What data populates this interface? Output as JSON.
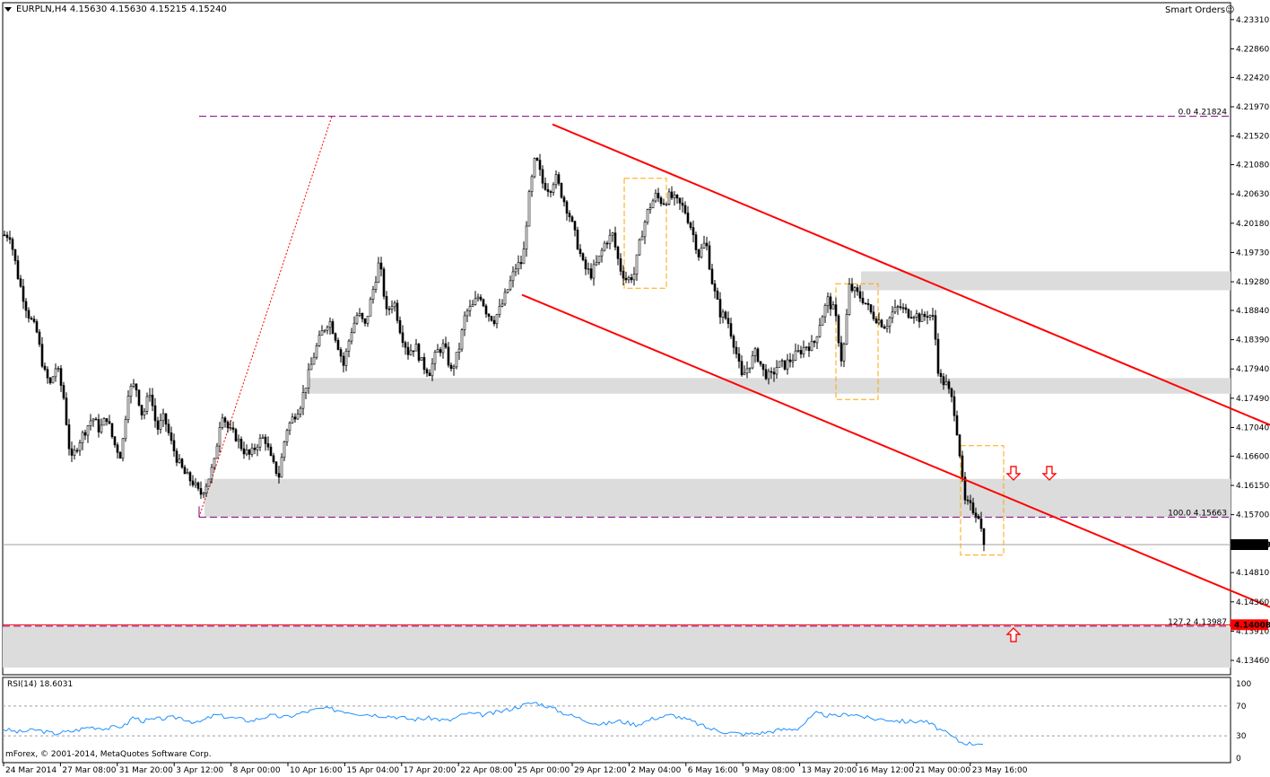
{
  "header": {
    "symbol_info": "EURPLN,H4  4.15630 4.15630 4.15215 4.15240",
    "smart_orders": "Smart Orders",
    "copyright": "mForex, © 2001-2014, MetaQuotes Software Corp."
  },
  "chart_data": [
    {
      "type": "candlestick",
      "symbol": "EURPLN",
      "timeframe": "H4",
      "ohlc_last": {
        "open": 4.1563,
        "high": 4.1563,
        "low": 4.15215,
        "close": 4.1524
      },
      "y_range": [
        4.1324,
        4.2357
      ],
      "y_ticks": [
        "4.23310",
        "4.22860",
        "4.22420",
        "4.21970",
        "4.21520",
        "4.21080",
        "4.20630",
        "4.20180",
        "4.19730",
        "4.19280",
        "4.18840",
        "4.18390",
        "4.17940",
        "4.17490",
        "4.17040",
        "4.16600",
        "4.16150",
        "4.15700",
        "4.15240",
        "4.14810",
        "4.14360",
        "4.13910",
        "4.13460"
      ],
      "x_ticks": [
        "24 Mar 2014",
        "27 Mar 08:00",
        "31 Mar 20:00",
        "3 Apr 12:00",
        "8 Apr 00:00",
        "10 Apr 16:00",
        "15 Apr 04:00",
        "17 Apr 20:00",
        "22 Apr 08:00",
        "25 Apr 00:00",
        "29 Apr 12:00",
        "2 May 04:00",
        "6 May 16:00",
        "9 May 08:00",
        "13 May 20:00",
        "16 May 12:00",
        "21 May 00:00",
        "23 May 16:00"
      ],
      "price_path": [
        [
          0,
          4.2
        ],
        [
          10,
          4.2
        ],
        [
          20,
          4.193
        ],
        [
          30,
          4.188
        ],
        [
          40,
          4.185
        ],
        [
          48,
          4.179
        ],
        [
          55,
          4.177
        ],
        [
          62,
          4.18
        ],
        [
          70,
          4.175
        ],
        [
          78,
          4.165
        ],
        [
          86,
          4.168
        ],
        [
          94,
          4.17
        ],
        [
          102,
          4.172
        ],
        [
          110,
          4.17
        ],
        [
          118,
          4.172
        ],
        [
          126,
          4.168
        ],
        [
          134,
          4.166
        ],
        [
          142,
          4.176
        ],
        [
          150,
          4.177
        ],
        [
          158,
          4.172
        ],
        [
          166,
          4.176
        ],
        [
          174,
          4.17
        ],
        [
          182,
          4.172
        ],
        [
          190,
          4.168
        ],
        [
          198,
          4.165
        ],
        [
          206,
          4.163
        ],
        [
          214,
          4.162
        ],
        [
          222,
          4.16
        ],
        [
          230,
          4.162
        ],
        [
          238,
          4.165
        ],
        [
          246,
          4.173
        ],
        [
          254,
          4.17
        ],
        [
          262,
          4.169
        ],
        [
          270,
          4.167
        ],
        [
          278,
          4.166
        ],
        [
          286,
          4.168
        ],
        [
          294,
          4.169
        ],
        [
          302,
          4.165
        ],
        [
          310,
          4.163
        ],
        [
          318,
          4.17
        ],
        [
          326,
          4.172
        ],
        [
          334,
          4.174
        ],
        [
          342,
          4.178
        ],
        [
          350,
          4.182
        ],
        [
          358,
          4.185
        ],
        [
          366,
          4.187
        ],
        [
          374,
          4.184
        ],
        [
          382,
          4.18
        ],
        [
          390,
          4.185
        ],
        [
          398,
          4.188
        ],
        [
          406,
          4.186
        ],
        [
          414,
          4.191
        ],
        [
          422,
          4.196
        ],
        [
          430,
          4.188
        ],
        [
          438,
          4.19
        ],
        [
          446,
          4.185
        ],
        [
          454,
          4.182
        ],
        [
          462,
          4.183
        ],
        [
          470,
          4.18
        ],
        [
          478,
          4.179
        ],
        [
          486,
          4.182
        ],
        [
          494,
          4.183
        ],
        [
          502,
          4.179
        ],
        [
          510,
          4.182
        ],
        [
          518,
          4.188
        ],
        [
          526,
          4.189
        ],
        [
          534,
          4.191
        ],
        [
          542,
          4.188
        ],
        [
          550,
          4.187
        ],
        [
          558,
          4.189
        ],
        [
          566,
          4.192
        ],
        [
          574,
          4.195
        ],
        [
          582,
          4.196
        ],
        [
          588,
          4.205
        ],
        [
          596,
          4.212
        ],
        [
          604,
          4.208
        ],
        [
          612,
          4.207
        ],
        [
          618,
          4.209
        ],
        [
          626,
          4.206
        ],
        [
          634,
          4.203
        ],
        [
          642,
          4.199
        ],
        [
          650,
          4.195
        ],
        [
          658,
          4.194
        ],
        [
          666,
          4.196
        ],
        [
          674,
          4.199
        ],
        [
          682,
          4.2
        ],
        [
          690,
          4.195
        ],
        [
          698,
          4.193
        ],
        [
          706,
          4.194
        ],
        [
          714,
          4.2
        ],
        [
          722,
          4.204
        ],
        [
          730,
          4.206
        ],
        [
          738,
          4.205
        ],
        [
          746,
          4.206
        ],
        [
          754,
          4.205
        ],
        [
          762,
          4.204
        ],
        [
          770,
          4.201
        ],
        [
          778,
          4.197
        ],
        [
          786,
          4.199
        ],
        [
          794,
          4.192
        ],
        [
          802,
          4.188
        ],
        [
          810,
          4.187
        ],
        [
          818,
          4.183
        ],
        [
          826,
          4.178
        ],
        [
          834,
          4.18
        ],
        [
          842,
          4.182
        ],
        [
          850,
          4.179
        ],
        [
          858,
          4.178
        ],
        [
          866,
          4.18
        ],
        [
          874,
          4.18
        ],
        [
          882,
          4.181
        ],
        [
          890,
          4.182
        ],
        [
          898,
          4.183
        ],
        [
          906,
          4.183
        ],
        [
          914,
          4.187
        ],
        [
          922,
          4.19
        ],
        [
          930,
          4.188
        ],
        [
          938,
          4.18
        ],
        [
          946,
          4.192
        ],
        [
          954,
          4.191
        ],
        [
          962,
          4.19
        ],
        [
          970,
          4.188
        ],
        [
          978,
          4.187
        ],
        [
          986,
          4.186
        ],
        [
          994,
          4.188
        ],
        [
          1002,
          4.189
        ],
        [
          1010,
          4.188
        ],
        [
          1018,
          4.188
        ],
        [
          1026,
          4.187
        ],
        [
          1034,
          4.188
        ],
        [
          1040,
          4.187
        ],
        [
          1046,
          4.178
        ],
        [
          1054,
          4.177
        ],
        [
          1062,
          4.174
        ],
        [
          1068,
          4.168
        ],
        [
          1074,
          4.159
        ],
        [
          1082,
          4.158
        ],
        [
          1090,
          4.157
        ],
        [
          1096,
          4.1524
        ]
      ],
      "fibonacci": [
        {
          "level": "0.0",
          "price": 4.21824,
          "label": "0.0   4.21824"
        },
        {
          "level": "100.0",
          "price": 4.15663,
          "label": "100.0   4.15663"
        },
        {
          "level": "127.2",
          "price": 4.13987,
          "label": "127.2   4.13987"
        }
      ],
      "price_tags": [
        {
          "price": 4.1524,
          "label": "4.15240",
          "color": "#000000"
        },
        {
          "price": 4.14008,
          "label": "4.14008",
          "color": "#FF0000"
        }
      ],
      "zones": [
        {
          "from": 4.1915,
          "to": 4.1944
        },
        {
          "from": 4.1756,
          "to": 4.178
        },
        {
          "from": 4.1566,
          "to": 4.1625
        },
        {
          "from": 4.1335,
          "to": 4.1399
        }
      ],
      "channel": {
        "upper": {
          "p1": {
            "x": 616,
            "price": 4.217
          },
          "p2": {
            "x": 1416,
            "price": 4.1708
          }
        },
        "lower": {
          "p1": {
            "x": 582,
            "price": 4.1908
          },
          "p2": {
            "x": 1416,
            "price": 4.1428
          }
        }
      },
      "arrows": [
        {
          "x": 1130,
          "price": 4.1633,
          "dir": "down"
        },
        {
          "x": 1170,
          "price": 4.1633,
          "dir": "down"
        },
        {
          "x": 1130,
          "price": 4.1386,
          "dir": "up"
        }
      ],
      "colors": {
        "candle": "#000000",
        "channel": "#FF0000",
        "fib": "#800080",
        "zone": "#DCDCDC",
        "box": "#FFA500",
        "rsi": "#1E90FF"
      }
    },
    {
      "type": "line",
      "indicator": "RSI(14)",
      "label": "RSI(14) 18.6031",
      "value": 18.6031,
      "y_range": [
        0,
        100
      ],
      "y_ticks": [
        "100",
        "70",
        "30",
        "0"
      ],
      "levels": [
        70,
        30
      ],
      "series": [
        [
          0,
          40
        ],
        [
          20,
          35
        ],
        [
          40,
          38
        ],
        [
          60,
          33
        ],
        [
          80,
          36
        ],
        [
          100,
          42
        ],
        [
          120,
          40
        ],
        [
          140,
          44
        ],
        [
          148,
          55
        ],
        [
          160,
          50
        ],
        [
          180,
          53
        ],
        [
          200,
          55
        ],
        [
          220,
          47
        ],
        [
          240,
          58
        ],
        [
          260,
          54
        ],
        [
          280,
          50
        ],
        [
          300,
          57
        ],
        [
          320,
          55
        ],
        [
          340,
          62
        ],
        [
          360,
          67
        ],
        [
          380,
          64
        ],
        [
          400,
          60
        ],
        [
          420,
          58
        ],
        [
          440,
          56
        ],
        [
          460,
          52
        ],
        [
          480,
          54
        ],
        [
          500,
          50
        ],
        [
          520,
          60
        ],
        [
          540,
          58
        ],
        [
          560,
          63
        ],
        [
          580,
          70
        ],
        [
          596,
          75
        ],
        [
          610,
          70
        ],
        [
          630,
          60
        ],
        [
          650,
          52
        ],
        [
          670,
          45
        ],
        [
          690,
          50
        ],
        [
          710,
          45
        ],
        [
          730,
          54
        ],
        [
          750,
          58
        ],
        [
          770,
          50
        ],
        [
          790,
          40
        ],
        [
          810,
          35
        ],
        [
          830,
          32
        ],
        [
          850,
          34
        ],
        [
          870,
          38
        ],
        [
          890,
          40
        ],
        [
          910,
          60
        ],
        [
          930,
          56
        ],
        [
          950,
          60
        ],
        [
          970,
          53
        ],
        [
          990,
          52
        ],
        [
          1010,
          49
        ],
        [
          1030,
          50
        ],
        [
          1040,
          44
        ],
        [
          1050,
          37
        ],
        [
          1060,
          30
        ],
        [
          1070,
          22
        ],
        [
          1080,
          20
        ],
        [
          1090,
          19
        ],
        [
          1096,
          18.6
        ]
      ]
    }
  ]
}
